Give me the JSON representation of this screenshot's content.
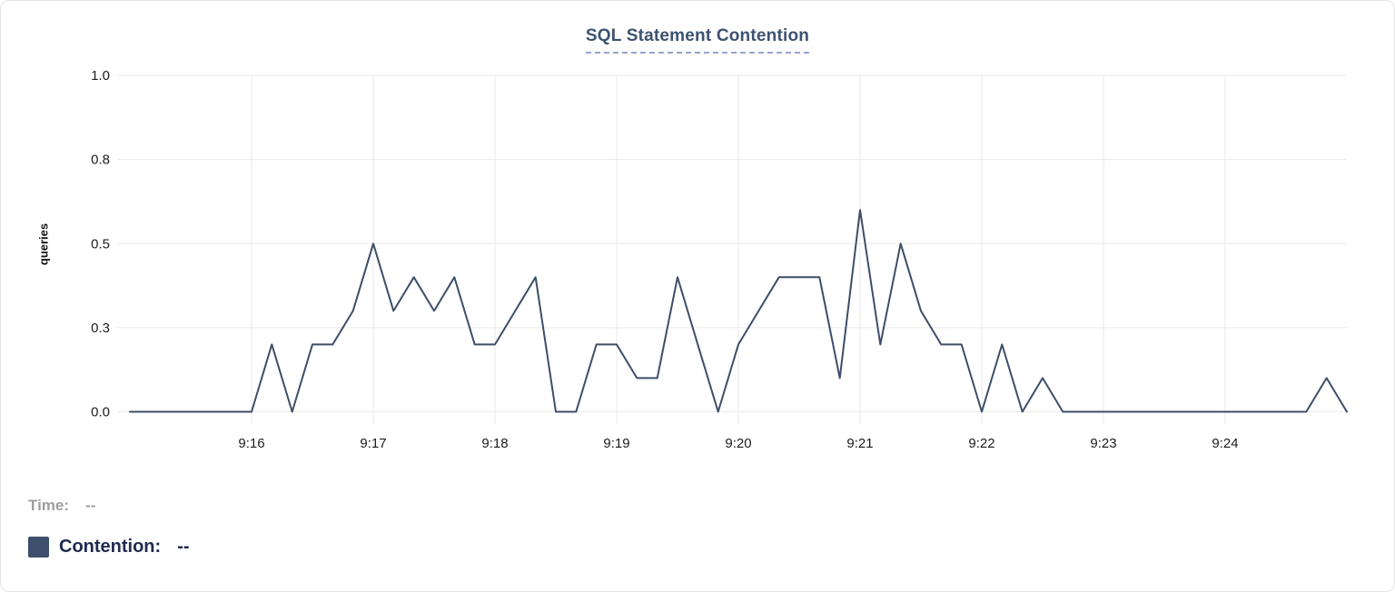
{
  "chart": {
    "title": "SQL Statement Contention",
    "y_axis_label": "queries"
  },
  "legend": {
    "time_label": "Time:",
    "time_value": "--",
    "contention_label": "Contention:",
    "contention_value": "--"
  },
  "colors": {
    "line": "#3d4e68",
    "legend_swatch": "#3e4f6b",
    "title_text": "#3c5270",
    "title_underline": "#99a2d2",
    "gridline": "#e9e9e9",
    "tick_text": "#1c1c1c",
    "time_label_text": "#9e9e9e",
    "contention_label_text": "#1e2a4d"
  },
  "chart_data": {
    "type": "line",
    "title": "SQL Statement Contention",
    "xlabel": "",
    "ylabel": "queries",
    "series_name": "Contention",
    "start_time": "9:15:00",
    "end_time": "9:25:00",
    "interval_seconds": 10,
    "xlim_seconds": [
      0,
      600
    ],
    "ylim": [
      0,
      1
    ],
    "grid": true,
    "x_ticks": [
      {
        "minute": 1,
        "label": "9:16"
      },
      {
        "minute": 2,
        "label": "9:17"
      },
      {
        "minute": 3,
        "label": "9:18"
      },
      {
        "minute": 4,
        "label": "9:19"
      },
      {
        "minute": 5,
        "label": "9:20"
      },
      {
        "minute": 6,
        "label": "9:21"
      },
      {
        "minute": 7,
        "label": "9:22"
      },
      {
        "minute": 8,
        "label": "9:23"
      },
      {
        "minute": 9,
        "label": "9:24"
      }
    ],
    "y_ticks": [
      {
        "value": 0.0,
        "label": "0.0"
      },
      {
        "value": 0.25,
        "label": "0.3"
      },
      {
        "value": 0.5,
        "label": "0.5"
      },
      {
        "value": 0.75,
        "label": "0.8"
      },
      {
        "value": 1.0,
        "label": "1.0"
      }
    ],
    "values": [
      0,
      0,
      0,
      0,
      0,
      0,
      0,
      0.2,
      0,
      0.2,
      0.2,
      0.3,
      0.5,
      0.3,
      0.4,
      0.3,
      0.4,
      0.2,
      0.2,
      0.3,
      0.4,
      0,
      0,
      0.2,
      0.2,
      0.1,
      0.1,
      0.4,
      0.2,
      0,
      0.2,
      0.3,
      0.4,
      0.4,
      0.4,
      0.1,
      0.6,
      0.2,
      0.5,
      0.3,
      0.2,
      0.2,
      0,
      0.2,
      0,
      0.1,
      0,
      0,
      0,
      0,
      0,
      0,
      0,
      0,
      0,
      0,
      0,
      0,
      0,
      0.1,
      0
    ]
  }
}
